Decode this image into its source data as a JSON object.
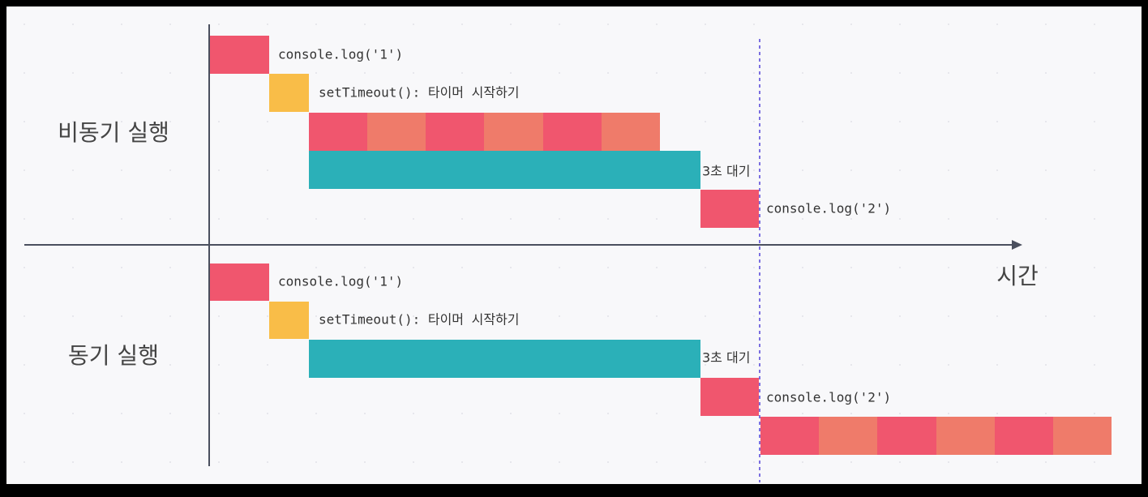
{
  "sections": [
    {
      "title": "비동기 실행",
      "steps": [
        "console.log('1')",
        "setTimeout(): 타이머 시작하기",
        "3초 대기",
        "console.log('2')"
      ]
    },
    {
      "title": "동기 실행",
      "steps": [
        "console.log('1')",
        "setTimeout(): 타이머 시작하기",
        "3초 대기",
        "console.log('2')"
      ]
    }
  ],
  "axis_label": "시간"
}
